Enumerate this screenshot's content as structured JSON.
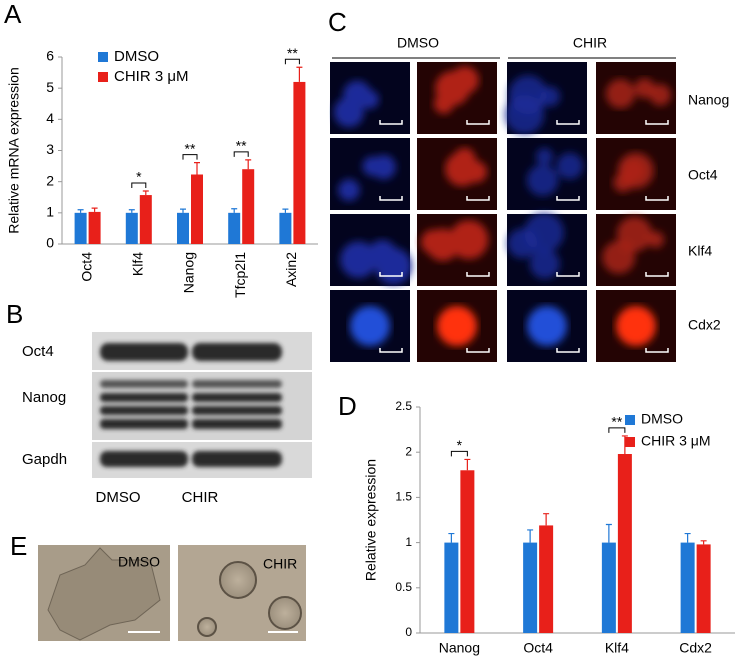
{
  "panel_labels": [
    "A",
    "B",
    "C",
    "D",
    "E"
  ],
  "chart_data": [
    {
      "type": "bar",
      "ylabel": "Relative mRNA expression",
      "categories": [
        "Oct4",
        "Klf4",
        "Nanog",
        "Tfcp2l1",
        "Axin2"
      ],
      "series": [
        {
          "name": "DMSO",
          "color": "#1f78d6",
          "values": [
            1,
            1,
            1,
            1,
            1
          ],
          "errors": [
            0.1,
            0.1,
            0.12,
            0.13,
            0.12
          ]
        },
        {
          "name": "CHIR 3 μM",
          "color": "#e8201a",
          "values": [
            1.03,
            1.57,
            2.23,
            2.4,
            5.2
          ],
          "errors": [
            0.12,
            0.13,
            0.38,
            0.3,
            0.47
          ]
        }
      ],
      "significance": [
        null,
        "*",
        "**",
        "**",
        "**"
      ],
      "ylim": [
        0,
        6
      ],
      "yticks": [
        0,
        1,
        2,
        3,
        4,
        5,
        6
      ],
      "legend": "upper left"
    },
    {
      "type": "bar",
      "ylabel": "Relative  expression",
      "categories": [
        "Nanog",
        "Oct4",
        "Klf4",
        "Cdx2"
      ],
      "series": [
        {
          "name": "DMSO",
          "color": "#1f78d6",
          "values": [
            1,
            1,
            1,
            1
          ],
          "errors": [
            0.1,
            0.14,
            0.2,
            0.1
          ]
        },
        {
          "name": "CHIR 3 μM",
          "color": "#e8201a",
          "values": [
            1.8,
            1.19,
            1.98,
            0.98
          ],
          "errors": [
            0.12,
            0.13,
            0.2,
            0.04
          ]
        }
      ],
      "significance": [
        "*",
        null,
        "**",
        null
      ],
      "ylim": [
        0,
        2.5
      ],
      "yticks": [
        0,
        0.5,
        1,
        1.5,
        2,
        2.5
      ],
      "legend": "upper right"
    }
  ],
  "western_blot": {
    "rows": [
      "Oct4",
      "Nanog",
      "Gapdh"
    ],
    "columns": [
      "DMSO",
      "CHIR"
    ]
  },
  "fluorescence": {
    "columns": [
      "DMSO",
      "CHIR"
    ],
    "rows": [
      "Nanog",
      "Oct4",
      "Klf4",
      "Cdx2"
    ]
  },
  "brightfield": {
    "labels": [
      "DMSO",
      "CHIR"
    ]
  }
}
